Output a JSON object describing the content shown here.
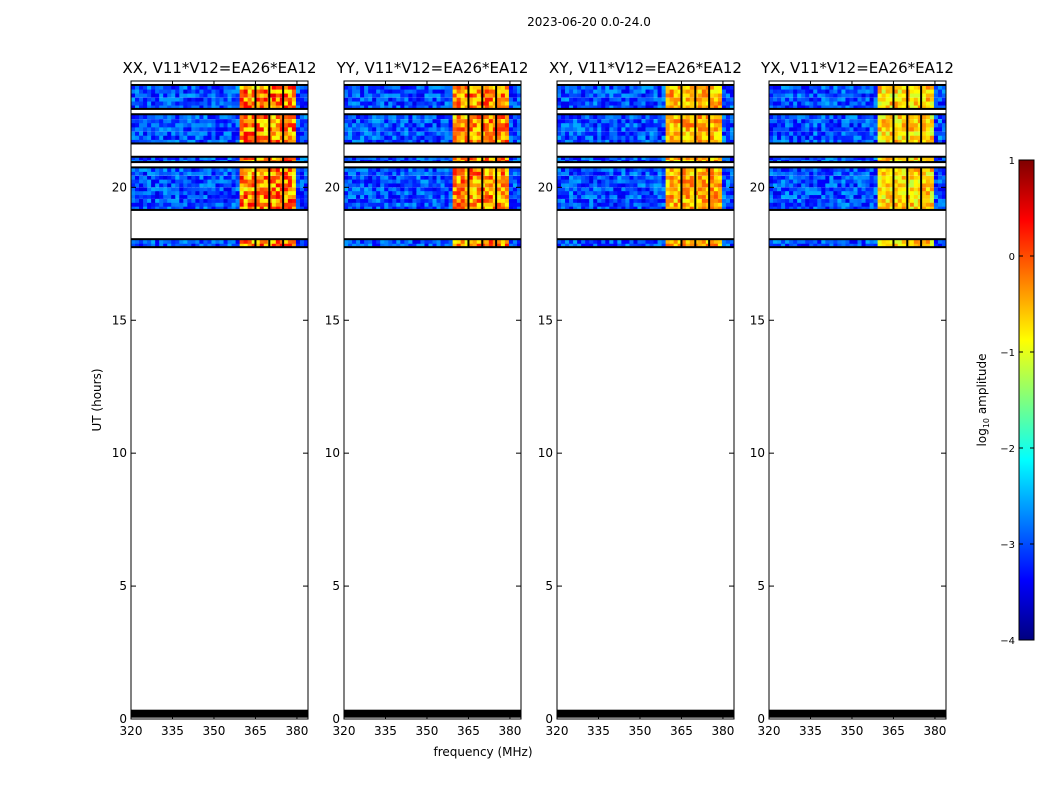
{
  "figure": {
    "suptitle": "2023-06-20 0.0-24.0",
    "xlabel": "frequency (MHz)",
    "ylabel": "UT (hours)"
  },
  "colorbar": {
    "label": "log",
    "label_sub": "10",
    "label_rest": " amplitude",
    "range": [
      -4,
      1
    ],
    "ticks": [
      "1",
      "0",
      "−1",
      "−2",
      "−3",
      "−4"
    ],
    "tick_values": [
      1,
      0,
      -1,
      -2,
      -3,
      -4
    ],
    "colormap": "jet",
    "colors": [
      "#00007f",
      "#0000ff",
      "#007fff",
      "#00ffff",
      "#7fff7f",
      "#ffff00",
      "#ff7f00",
      "#ff0000",
      "#7f0000"
    ]
  },
  "chart_data": {
    "type": "heatmap",
    "title": "2023-06-20 0.0-24.0",
    "xlabel": "frequency (MHz)",
    "ylabel": "UT (hours)",
    "xlim": [
      320,
      384
    ],
    "ylim": [
      0,
      24
    ],
    "xticks": [
      320,
      335,
      350,
      365,
      380
    ],
    "xtick_labels": [
      "320",
      "335",
      "350",
      "365",
      "380"
    ],
    "yticks": [
      0,
      5,
      10,
      15,
      20
    ],
    "ytick_labels": [
      "0",
      "5",
      "10",
      "15",
      "20"
    ],
    "panels": [
      {
        "title": "XX, V11*V12=EA26*EA12",
        "pol": "XX",
        "rfi_band_mhz": [
          360,
          380
        ],
        "rfi_log_amp": [
          -1,
          0.5
        ]
      },
      {
        "title": "YY, V11*V12=EA26*EA12",
        "pol": "YY",
        "rfi_band_mhz": [
          360,
          380
        ],
        "rfi_log_amp": [
          -1,
          0.3
        ]
      },
      {
        "title": "XY, V11*V12=EA26*EA12",
        "pol": "XY",
        "rfi_band_mhz": [
          360,
          380
        ],
        "rfi_log_amp": [
          -1,
          0
        ]
      },
      {
        "title": "YX, V11*V12=EA26*EA12",
        "pol": "YX",
        "rfi_band_mhz": [
          360,
          380
        ],
        "rfi_log_amp": [
          -1.2,
          -0.2
        ]
      }
    ],
    "data_segments_ut_hours": [
      [
        22.95,
        23.85
      ],
      [
        21.65,
        22.75
      ],
      [
        20.95,
        21.15
      ],
      [
        19.15,
        20.75
      ],
      [
        17.75,
        18.05
      ],
      [
        0.05,
        0.35
      ]
    ],
    "background_log_amp": [
      -3.5,
      -2.5
    ],
    "colorbar_range": [
      -4,
      1
    ]
  }
}
